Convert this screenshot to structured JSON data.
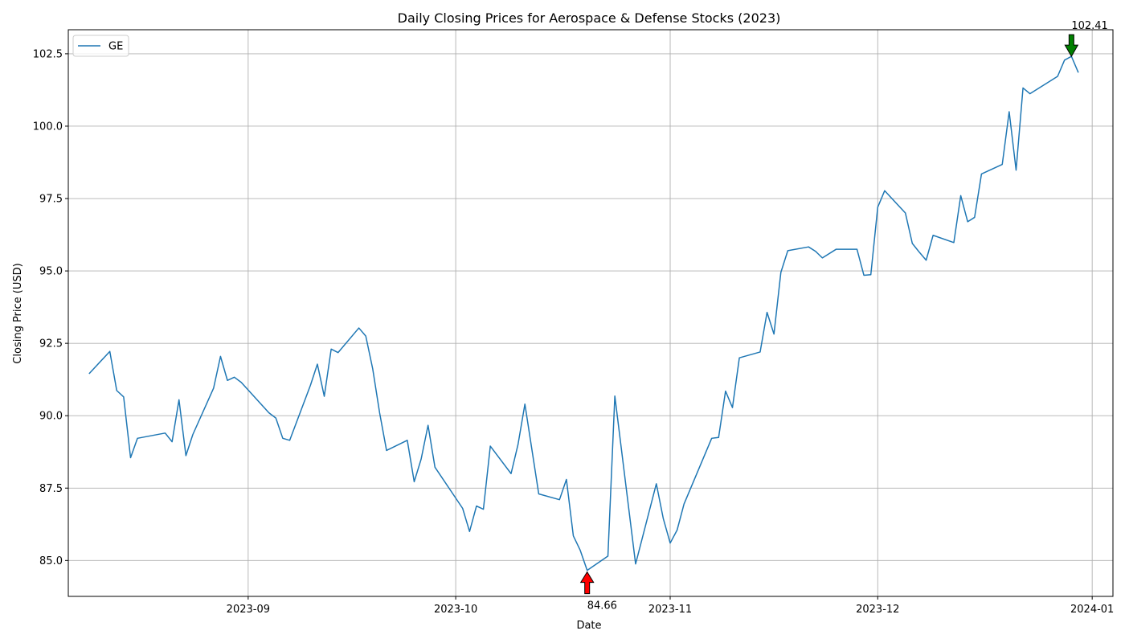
{
  "chart_data": {
    "type": "line",
    "title": "Daily Closing Prices for Aerospace & Defense Stocks (2023)",
    "xlabel": "Date",
    "ylabel": "Closing Price (USD)",
    "xlim": [
      "2023-08-06",
      "2024-01-04"
    ],
    "ylim": [
      83.76,
      103.33
    ],
    "x_ticks": [
      {
        "date": "2023-09-01",
        "label": "2023-09"
      },
      {
        "date": "2023-10-01",
        "label": "2023-10"
      },
      {
        "date": "2023-11-01",
        "label": "2023-11"
      },
      {
        "date": "2023-12-01",
        "label": "2023-12"
      },
      {
        "date": "2024-01-01",
        "label": "2024-01"
      }
    ],
    "y_ticks": [
      {
        "value": 85.0,
        "label": "85.0"
      },
      {
        "value": 87.5,
        "label": "87.5"
      },
      {
        "value": 90.0,
        "label": "90.0"
      },
      {
        "value": 92.5,
        "label": "92.5"
      },
      {
        "value": 95.0,
        "label": "95.0"
      },
      {
        "value": 97.5,
        "label": "97.5"
      },
      {
        "value": 100.0,
        "label": "100.0"
      },
      {
        "value": 102.5,
        "label": "102.5"
      }
    ],
    "grid": true,
    "legend_position": "upper-left",
    "series": [
      {
        "name": "GE",
        "color": "#1f77b4",
        "points": [
          [
            "2023-08-09",
            91.45
          ],
          [
            "2023-08-12",
            92.22
          ],
          [
            "2023-08-13",
            90.87
          ],
          [
            "2023-08-14",
            90.65
          ],
          [
            "2023-08-15",
            88.55
          ],
          [
            "2023-08-16",
            89.22
          ],
          [
            "2023-08-20",
            89.4
          ],
          [
            "2023-08-21",
            89.1
          ],
          [
            "2023-08-22",
            90.55
          ],
          [
            "2023-08-23",
            88.62
          ],
          [
            "2023-08-24",
            89.35
          ],
          [
            "2023-08-27",
            90.95
          ],
          [
            "2023-08-28",
            92.05
          ],
          [
            "2023-08-29",
            91.22
          ],
          [
            "2023-08-30",
            91.33
          ],
          [
            "2023-08-31",
            91.15
          ],
          [
            "2023-09-04",
            90.1
          ],
          [
            "2023-09-05",
            89.92
          ],
          [
            "2023-09-06",
            89.22
          ],
          [
            "2023-09-07",
            89.15
          ],
          [
            "2023-09-10",
            91.05
          ],
          [
            "2023-09-11",
            91.78
          ],
          [
            "2023-09-12",
            90.67
          ],
          [
            "2023-09-13",
            92.3
          ],
          [
            "2023-09-14",
            92.18
          ],
          [
            "2023-09-17",
            93.03
          ],
          [
            "2023-09-18",
            92.75
          ],
          [
            "2023-09-19",
            91.62
          ],
          [
            "2023-09-20",
            90.1
          ],
          [
            "2023-09-21",
            88.8
          ],
          [
            "2023-09-24",
            89.15
          ],
          [
            "2023-09-25",
            87.72
          ],
          [
            "2023-09-26",
            88.5
          ],
          [
            "2023-09-27",
            89.67
          ],
          [
            "2023-09-28",
            88.22
          ],
          [
            "2023-10-02",
            86.8
          ],
          [
            "2023-10-03",
            86.0
          ],
          [
            "2023-10-04",
            86.88
          ],
          [
            "2023-10-05",
            86.77
          ],
          [
            "2023-10-06",
            88.95
          ],
          [
            "2023-10-09",
            88.0
          ],
          [
            "2023-10-10",
            89.0
          ],
          [
            "2023-10-11",
            90.4
          ],
          [
            "2023-10-13",
            87.3
          ],
          [
            "2023-10-16",
            87.1
          ],
          [
            "2023-10-17",
            87.8
          ],
          [
            "2023-10-18",
            85.85
          ],
          [
            "2023-10-19",
            85.35
          ],
          [
            "2023-10-20",
            84.66
          ],
          [
            "2023-10-23",
            85.15
          ],
          [
            "2023-10-24",
            90.68
          ],
          [
            "2023-10-27",
            84.88
          ],
          [
            "2023-10-30",
            87.65
          ],
          [
            "2023-10-31",
            86.45
          ],
          [
            "2023-11-01",
            85.6
          ],
          [
            "2023-11-02",
            86.05
          ],
          [
            "2023-11-03",
            86.95
          ],
          [
            "2023-11-07",
            89.22
          ],
          [
            "2023-11-08",
            89.25
          ],
          [
            "2023-11-09",
            90.85
          ],
          [
            "2023-11-10",
            90.28
          ],
          [
            "2023-11-11",
            92.0
          ],
          [
            "2023-11-14",
            92.2
          ],
          [
            "2023-11-15",
            93.57
          ],
          [
            "2023-11-16",
            92.82
          ],
          [
            "2023-11-17",
            94.95
          ],
          [
            "2023-11-18",
            95.7
          ],
          [
            "2023-11-21",
            95.83
          ],
          [
            "2023-11-22",
            95.68
          ],
          [
            "2023-11-23",
            95.45
          ],
          [
            "2023-11-25",
            95.75
          ],
          [
            "2023-11-28",
            95.75
          ],
          [
            "2023-11-29",
            94.85
          ],
          [
            "2023-11-30",
            94.87
          ],
          [
            "2023-12-01",
            97.2
          ],
          [
            "2023-12-02",
            97.77
          ],
          [
            "2023-12-05",
            97.0
          ],
          [
            "2023-12-06",
            95.95
          ],
          [
            "2023-12-07",
            95.65
          ],
          [
            "2023-12-08",
            95.37
          ],
          [
            "2023-12-09",
            96.23
          ],
          [
            "2023-12-12",
            95.98
          ],
          [
            "2023-12-13",
            97.6
          ],
          [
            "2023-12-14",
            96.7
          ],
          [
            "2023-12-15",
            96.85
          ],
          [
            "2023-12-16",
            98.35
          ],
          [
            "2023-12-19",
            98.68
          ],
          [
            "2023-12-20",
            100.5
          ],
          [
            "2023-12-21",
            98.48
          ],
          [
            "2023-12-22",
            101.32
          ],
          [
            "2023-12-23",
            101.12
          ],
          [
            "2023-12-27",
            101.72
          ],
          [
            "2023-12-28",
            102.28
          ],
          [
            "2023-12-29",
            102.41
          ],
          [
            "2023-12-30",
            101.85
          ]
        ]
      }
    ],
    "annotations": [
      {
        "text": "102.41",
        "date": "2023-12-29",
        "value": 102.41,
        "kind": "max",
        "color": "#008000"
      },
      {
        "text": "84.66",
        "date": "2023-10-20",
        "value": 84.66,
        "kind": "min",
        "color": "#ff0000"
      }
    ]
  }
}
